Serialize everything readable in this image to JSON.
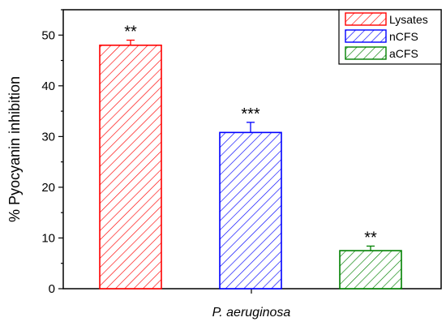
{
  "chart_data": {
    "type": "bar",
    "ylabel": "% Pyocyanin inhibition",
    "xlabel": "P. aeruginosa",
    "ylim": [
      0,
      55
    ],
    "yticks": [
      0,
      10,
      20,
      30,
      40,
      50
    ],
    "grid": false,
    "legend_position": "top-right",
    "series": [
      {
        "name": "Lysates",
        "value": 48,
        "error": 1.0,
        "annotation": "**",
        "color": "#ff0000"
      },
      {
        "name": "nCFS",
        "value": 30.8,
        "error": 2.0,
        "annotation": "***",
        "color": "#0000ff"
      },
      {
        "name": "aCFS",
        "value": 7.5,
        "error": 0.9,
        "annotation": "**",
        "color": "#008000"
      }
    ]
  }
}
